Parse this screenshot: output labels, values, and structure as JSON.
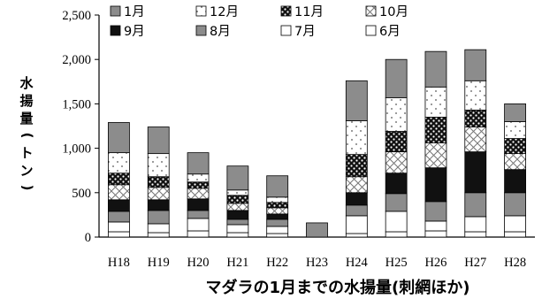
{
  "chart_data": {
    "type": "bar",
    "stacked": true,
    "title": "マダラの1月までの水揚量(刺網ほか)",
    "xlabel": "",
    "ylabel": "水揚量(トン)",
    "ylim": [
      0,
      2500
    ],
    "yticks": [
      0,
      500,
      1000,
      1500,
      2000,
      2500
    ],
    "ytick_labels": [
      "0",
      "500",
      "1,000",
      "1,500",
      "2,000",
      "2,500"
    ],
    "grid": false,
    "legend_position": "top",
    "categories": [
      "H18",
      "H19",
      "H20",
      "H21",
      "H22",
      "H23",
      "H24",
      "H25",
      "H26",
      "H27",
      "H28"
    ],
    "series": [
      {
        "name": "6月",
        "pattern": "white",
        "values": [
          60,
          50,
          70,
          50,
          40,
          0,
          40,
          60,
          70,
          60,
          60
        ]
      },
      {
        "name": "7月",
        "pattern": "white",
        "values": [
          110,
          100,
          140,
          90,
          80,
          0,
          200,
          230,
          110,
          170,
          180
        ]
      },
      {
        "name": "8月",
        "pattern": "gray",
        "values": [
          120,
          150,
          90,
          60,
          80,
          0,
          120,
          200,
          220,
          270,
          260
        ]
      },
      {
        "name": "9月",
        "pattern": "black",
        "values": [
          130,
          120,
          130,
          100,
          60,
          0,
          140,
          230,
          380,
          460,
          260
        ]
      },
      {
        "name": "10月",
        "pattern": "cross",
        "values": [
          170,
          140,
          120,
          80,
          70,
          0,
          180,
          240,
          280,
          280,
          180
        ]
      },
      {
        "name": "11月",
        "pattern": "black-dots",
        "values": [
          130,
          120,
          70,
          90,
          60,
          0,
          250,
          230,
          290,
          190,
          170
        ]
      },
      {
        "name": "12月",
        "pattern": "white-dots",
        "values": [
          230,
          260,
          90,
          60,
          60,
          0,
          380,
          380,
          340,
          330,
          190
        ]
      },
      {
        "name": "1月",
        "pattern": "gray",
        "values": [
          340,
          300,
          240,
          270,
          240,
          160,
          450,
          430,
          400,
          350,
          200
        ]
      }
    ],
    "legend_order": [
      "1月",
      "12月",
      "11月",
      "10月",
      "9月",
      "8月",
      "7月",
      "6月"
    ]
  }
}
